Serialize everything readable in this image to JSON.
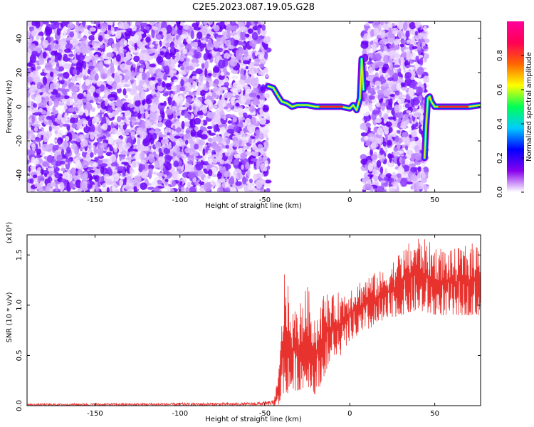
{
  "figure": {
    "title": "C2E5.2023.087.19.05.G28"
  },
  "chart_data": [
    {
      "type": "heatmap",
      "title": "C2E5.2023.087.19.05.G28",
      "xlabel": "Height of straight line (km)",
      "ylabel": "Frequency (Hz)",
      "xlim": [
        -190,
        77
      ],
      "ylim": [
        -50,
        50
      ],
      "x_ticks": [
        -150,
        -100,
        -50,
        0,
        50
      ],
      "y_ticks": [
        -40,
        -20,
        0,
        20,
        40
      ],
      "colorbar": {
        "label": "Normalized spectral amplitude",
        "range": [
          0,
          1
        ],
        "ticks": [
          "0.0",
          "0.2",
          "0.4",
          "0.6",
          "0.8"
        ],
        "colors": [
          "#ffffff",
          "#8800ee",
          "#0000ff",
          "#00ccff",
          "#00ff55",
          "#ffff00",
          "#ff6600",
          "#ff0055",
          "#ff0099"
        ]
      },
      "noise_regions_km": [
        [
          -190,
          -48
        ],
        [
          8,
          45
        ]
      ],
      "signal_track": {
        "x": [
          -48,
          -45,
          -42,
          -40,
          -37,
          -34,
          -31,
          -28,
          -25,
          -20,
          -15,
          -10,
          -5,
          0,
          2,
          4,
          6,
          7,
          8
        ],
        "y": [
          12,
          11,
          6,
          3,
          2,
          0,
          1,
          1,
          1,
          0,
          0,
          0,
          0,
          -1,
          1,
          -2,
          5,
          28,
          10
        ]
      },
      "signal_track_2": {
        "x": [
          44,
          45,
          46,
          47,
          48,
          50,
          55,
          60,
          65,
          70,
          77
        ],
        "y": [
          -30,
          -10,
          5,
          6,
          3,
          0,
          0,
          0,
          0,
          0,
          1
        ]
      }
    },
    {
      "type": "line",
      "xlabel": "Height of straight line (km)",
      "ylabel": "SNR (10 * v/v)",
      "scale_note": "(x10⁴)",
      "xlim": [
        -190,
        77
      ],
      "ylim": [
        0,
        1.7
      ],
      "x_ticks": [
        -150,
        -100,
        -50,
        0,
        50
      ],
      "y_ticks": [
        "0.0",
        "0.5",
        "1.0",
        "1.5"
      ],
      "color": "#e8322e",
      "envelope": {
        "x": [
          -190,
          -60,
          -45,
          -42,
          -40,
          -38,
          -35,
          -30,
          -25,
          -20,
          -15,
          -10,
          -5,
          0,
          10,
          20,
          30,
          40,
          50,
          60,
          77
        ],
        "upper": [
          0.02,
          0.03,
          0.05,
          0.3,
          0.9,
          1.48,
          0.95,
          1.0,
          1.2,
          0.9,
          1.15,
          1.1,
          1.15,
          1.2,
          1.3,
          1.35,
          1.55,
          1.7,
          1.6,
          1.55,
          1.65
        ],
        "lower": [
          0.0,
          0.0,
          0.0,
          0.0,
          0.1,
          0.1,
          0.15,
          0.15,
          0.2,
          0.1,
          0.3,
          0.5,
          0.5,
          0.65,
          0.75,
          0.85,
          0.9,
          0.95,
          0.9,
          0.9,
          0.9
        ]
      }
    }
  ]
}
